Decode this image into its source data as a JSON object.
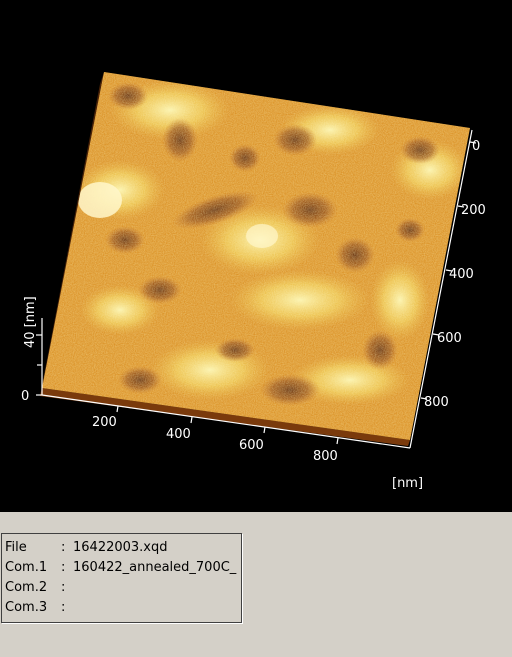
{
  "plot": {
    "scale_label_vertical": "40 [nm]",
    "z_zero_label": "0",
    "x_ticks": [
      "200",
      "400",
      "600",
      "800"
    ],
    "y_ticks": [
      "0",
      "200",
      "400",
      "600",
      "800"
    ],
    "unit_label": "[nm]",
    "colors": {
      "background": "#000000",
      "surface_dark": "#6a2f0a",
      "surface_mid": "#d88a1c",
      "surface_light": "#f6df6a",
      "axis": "#ffffff"
    }
  },
  "info": {
    "rows": [
      {
        "key": "File",
        "sep": ":",
        "value": "16422003.xqd"
      },
      {
        "key": "Com.1",
        "sep": ":",
        "value": "160422_annealed_700C_"
      },
      {
        "key": "Com.2",
        "sep": ":",
        "value": ""
      },
      {
        "key": "Com.3",
        "sep": ":",
        "value": ""
      }
    ]
  }
}
